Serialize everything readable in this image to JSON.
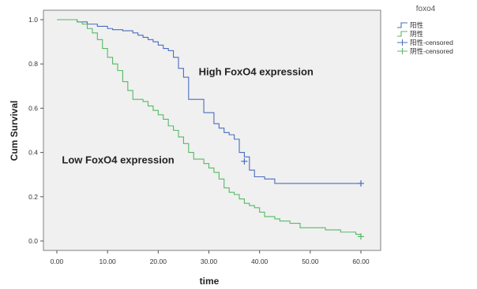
{
  "chart_data": {
    "type": "line",
    "xlabel": "time",
    "ylabel": "Cum Survival",
    "xlim": [
      0,
      60
    ],
    "ylim": [
      0,
      1
    ],
    "x_ticks": [
      "0.00",
      "10.00",
      "20.00",
      "30.00",
      "40.00",
      "50.00",
      "60.00"
    ],
    "y_ticks": [
      "0.0",
      "0.2",
      "0.4",
      "0.6",
      "0.8",
      "1.0"
    ],
    "grid": false,
    "legend_position": "top-right-outside",
    "legend": {
      "title": "foxo4",
      "entries": [
        "阳性",
        "阴性",
        "阳性-censored",
        "阴性-censored"
      ]
    },
    "annotations": [
      {
        "text": "High FoxO4 expression",
        "x": 28,
        "y": 0.75
      },
      {
        "text": "Low FoxO4 expression",
        "x": 1,
        "y": 0.35
      }
    ],
    "series": [
      {
        "name": "阳性",
        "color": "#4a6dbd",
        "steps": [
          [
            0,
            1.0
          ],
          [
            4,
            0.99
          ],
          [
            6,
            0.98
          ],
          [
            8,
            0.97
          ],
          [
            10,
            0.96
          ],
          [
            11,
            0.955
          ],
          [
            13,
            0.95
          ],
          [
            15,
            0.94
          ],
          [
            16,
            0.93
          ],
          [
            17,
            0.92
          ],
          [
            18,
            0.91
          ],
          [
            19,
            0.9
          ],
          [
            20,
            0.885
          ],
          [
            21,
            0.87
          ],
          [
            22,
            0.86
          ],
          [
            23,
            0.83
          ],
          [
            24,
            0.78
          ],
          [
            25,
            0.74
          ],
          [
            26,
            0.64
          ],
          [
            29,
            0.58
          ],
          [
            31,
            0.53
          ],
          [
            32,
            0.51
          ],
          [
            33,
            0.49
          ],
          [
            34,
            0.48
          ],
          [
            35,
            0.46
          ],
          [
            36,
            0.4
          ],
          [
            37,
            0.38
          ],
          [
            38,
            0.32
          ],
          [
            39,
            0.29
          ],
          [
            41,
            0.28
          ],
          [
            43,
            0.26
          ],
          [
            60,
            0.26
          ]
        ],
        "censored": [
          [
            37,
            0.36
          ],
          [
            60,
            0.26
          ]
        ]
      },
      {
        "name": "阴性",
        "color": "#55b964",
        "steps": [
          [
            0,
            1.0
          ],
          [
            4,
            0.99
          ],
          [
            5,
            0.98
          ],
          [
            6,
            0.96
          ],
          [
            7,
            0.94
          ],
          [
            8,
            0.91
          ],
          [
            9,
            0.87
          ],
          [
            10,
            0.83
          ],
          [
            11,
            0.8
          ],
          [
            12,
            0.77
          ],
          [
            13,
            0.72
          ],
          [
            14,
            0.68
          ],
          [
            15,
            0.64
          ],
          [
            17,
            0.63
          ],
          [
            18,
            0.61
          ],
          [
            19,
            0.59
          ],
          [
            20,
            0.57
          ],
          [
            21,
            0.55
          ],
          [
            22,
            0.52
          ],
          [
            23,
            0.5
          ],
          [
            24,
            0.47
          ],
          [
            25,
            0.44
          ],
          [
            26,
            0.4
          ],
          [
            27,
            0.37
          ],
          [
            29,
            0.35
          ],
          [
            30,
            0.33
          ],
          [
            31,
            0.31
          ],
          [
            32,
            0.28
          ],
          [
            33,
            0.24
          ],
          [
            34,
            0.22
          ],
          [
            35,
            0.21
          ],
          [
            36,
            0.19
          ],
          [
            37,
            0.17
          ],
          [
            38,
            0.16
          ],
          [
            39,
            0.15
          ],
          [
            40,
            0.13
          ],
          [
            41,
            0.11
          ],
          [
            43,
            0.1
          ],
          [
            44,
            0.09
          ],
          [
            46,
            0.08
          ],
          [
            48,
            0.06
          ],
          [
            53,
            0.05
          ],
          [
            56,
            0.04
          ],
          [
            59,
            0.03
          ],
          [
            60,
            0.02
          ]
        ],
        "censored": [
          [
            60,
            0.02
          ]
        ]
      }
    ]
  }
}
